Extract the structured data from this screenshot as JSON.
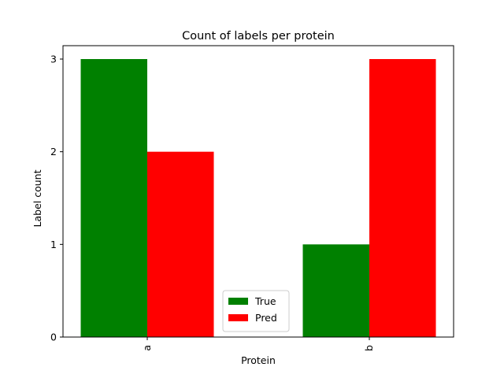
{
  "chart_data": {
    "type": "bar",
    "title": "Count of labels per protein",
    "xlabel": "Protein",
    "ylabel": "Label count",
    "categories": [
      "a",
      "b"
    ],
    "series": [
      {
        "name": "True",
        "values": [
          3,
          1
        ],
        "color": "#008000"
      },
      {
        "name": "Pred",
        "values": [
          2,
          3
        ],
        "color": "#ff0000"
      }
    ],
    "ylim": [
      0,
      3
    ],
    "yticks": [
      "0",
      "1",
      "2",
      "3"
    ],
    "grid": false,
    "legend_position": "bottom-center",
    "xtick_rotation": "vertical"
  }
}
